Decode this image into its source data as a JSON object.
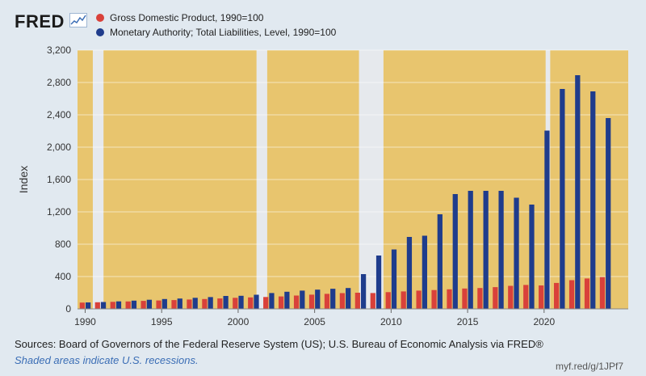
{
  "brand": {
    "logo_text": "FRED"
  },
  "legend": [
    {
      "label": "Gross Domestic Product, 1990=100",
      "color": "#d9413a"
    },
    {
      "label": "Monetary Authority; Total Liabilities, Level, 1990=100",
      "color": "#1f3c8c"
    }
  ],
  "footer": {
    "sources": "Sources: Board of Governors of the Federal Reserve System (US); U.S. Bureau of Economic Analysis via FRED®",
    "note": "Shaded areas indicate U.S. recessions.",
    "shortlink": "myf.red/g/1JPf7"
  },
  "chart_data": {
    "type": "bar",
    "ylabel": "Index",
    "ylim": [
      0,
      3200
    ],
    "yticks": [
      0,
      400,
      800,
      1200,
      1600,
      2000,
      2400,
      2800,
      3200
    ],
    "ytick_labels": [
      "0",
      "400",
      "800",
      "1,200",
      "1,600",
      "2,000",
      "2,400",
      "2,800",
      "3,200"
    ],
    "xlim": [
      1989.5,
      2025.5
    ],
    "xticks": [
      1990,
      1995,
      2000,
      2005,
      2010,
      2015,
      2020
    ],
    "grid": true,
    "legend_position": "top-left",
    "background_color": "#e8c56e",
    "recession_color": "#e6e9ed",
    "recessions": [
      [
        1990.5,
        1991.2
      ],
      [
        2001.2,
        2001.9
      ],
      [
        2007.9,
        2009.5
      ],
      [
        2020.1,
        2020.4
      ]
    ],
    "x": [
      1990,
      1991,
      1992,
      1993,
      1994,
      1995,
      1996,
      1997,
      1998,
      1999,
      2000,
      2001,
      2002,
      2003,
      2004,
      2005,
      2006,
      2007,
      2008,
      2009,
      2010,
      2011,
      2012,
      2013,
      2014,
      2015,
      2016,
      2017,
      2018,
      2019,
      2020,
      2021,
      2022,
      2023,
      2024
    ],
    "series": [
      {
        "name": "Gross Domestic Product, 1990=100",
        "color": "#d9413a",
        "values": [
          78,
          82,
          87,
          92,
          99,
          104,
          109,
          116,
          122,
          129,
          137,
          142,
          147,
          154,
          165,
          176,
          186,
          195,
          200,
          196,
          207,
          216,
          226,
          233,
          242,
          252,
          258,
          269,
          285,
          296,
          290,
          321,
          355,
          376,
          393
        ]
      },
      {
        "name": "Monetary Authority; Total Liabilities, Level, 1990=100",
        "color": "#1f3c8c",
        "values": [
          80,
          85,
          93,
          102,
          113,
          122,
          128,
          137,
          146,
          160,
          162,
          175,
          196,
          212,
          226,
          238,
          249,
          258,
          430,
          660,
          735,
          890,
          905,
          1170,
          1420,
          1460,
          1460,
          1460,
          1375,
          1290,
          2205,
          2720,
          2890,
          2690,
          2360
        ]
      }
    ]
  }
}
